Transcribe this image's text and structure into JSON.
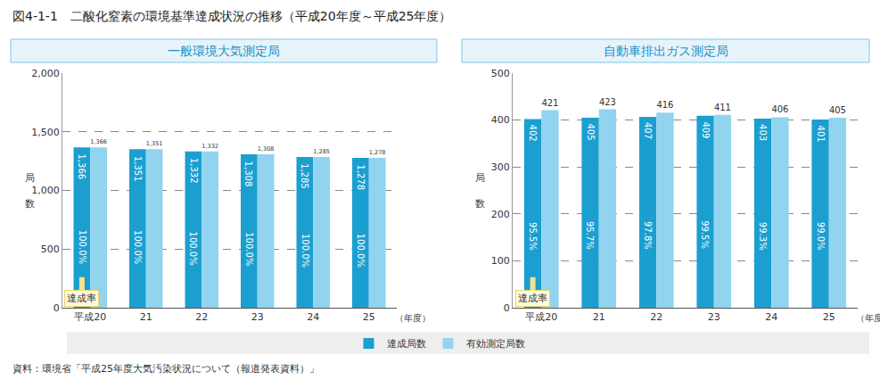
{
  "title": "図4-1-1　二酸化窒素の環境基準達成状況の推移（平成20年度～平成25年度）",
  "source": "資料：環境省「平成25年度大気汚染状況について（報道発表資料）」",
  "chart_data": [
    {
      "type": "bar",
      "title": "一般環境大気測定局",
      "categories": [
        "平成20",
        "21",
        "22",
        "23",
        "24",
        "25"
      ],
      "xlabel": "（年度）",
      "ylabel": "局数",
      "ylim": [
        0,
        2000
      ],
      "yticks": [
        0,
        500,
        {
          "value": 1000,
          "label": "1,000"
        },
        {
          "value": 1500,
          "label": "1,500"
        },
        {
          "value": 2000,
          "label": "2,000"
        }
      ],
      "grid": true,
      "data_labels": true,
      "annotations": [
        {
          "text": "達成率"
        }
      ],
      "series": [
        {
          "name": "達成局数",
          "color": "#1b9fd0",
          "values": [
            1366,
            1351,
            1332,
            1308,
            1285,
            1278
          ],
          "value_labels": [
            "1,366",
            "1,351",
            "1,332",
            "1,308",
            "1,285",
            "1,278"
          ],
          "rates": [
            100.0,
            100.0,
            100.0,
            100.0,
            100.0,
            100.0
          ],
          "rate_labels": [
            "100.0%",
            "100.0%",
            "100.0%",
            "100.0%",
            "100.0%",
            "100.0%"
          ]
        },
        {
          "name": "有効測定局数",
          "color": "#92d4ef",
          "values": [
            1366,
            1351,
            1332,
            1308,
            1285,
            1278
          ],
          "value_labels": [
            "1,366",
            "1,351",
            "1,332",
            "1,308",
            "1,285",
            "1,278"
          ]
        }
      ]
    },
    {
      "type": "bar",
      "title": "自動車排出ガス測定局",
      "categories": [
        "平成20",
        "21",
        "22",
        "23",
        "24",
        "25"
      ],
      "xlabel": "（年度）",
      "ylabel": "局数",
      "ylim": [
        0,
        500
      ],
      "yticks": [
        0,
        100,
        200,
        300,
        400,
        500
      ],
      "grid": true,
      "data_labels": true,
      "annotations": [
        {
          "text": "達成率"
        }
      ],
      "series": [
        {
          "name": "達成局数",
          "color": "#1b9fd0",
          "values": [
            402,
            405,
            407,
            409,
            403,
            401
          ],
          "rates": [
            95.5,
            95.7,
            97.8,
            99.5,
            99.3,
            99.0
          ],
          "rate_labels": [
            "95.5%",
            "95.7%",
            "97.8%",
            "99.5%",
            "99.3%",
            "99.0%"
          ]
        },
        {
          "name": "有効測定局数",
          "color": "#92d4ef",
          "values": [
            421,
            423,
            416,
            411,
            406,
            405
          ]
        }
      ]
    }
  ]
}
